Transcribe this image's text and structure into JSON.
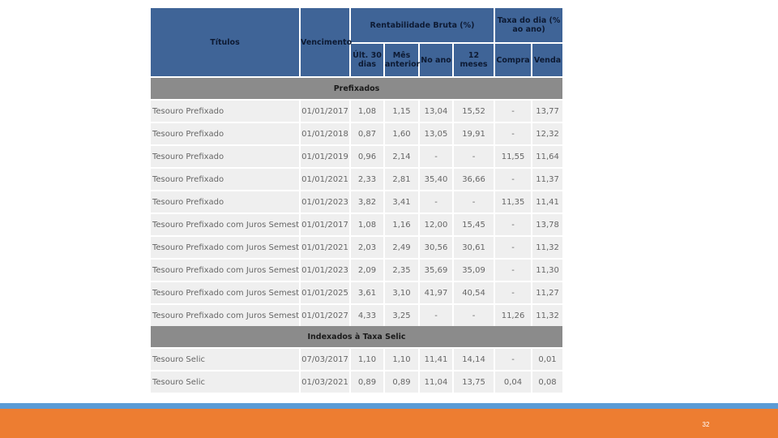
{
  "table": {
    "headers": {
      "titulos": "Títulos",
      "vencimento": "Vencimento",
      "rentabilidade": "Rentabilidade Bruta (%)",
      "taxa": "Taxa do dia (% ao ano)",
      "ult30": "Últ. 30 dias",
      "mes_anterior": "Mês anterior",
      "no_ano": "No ano",
      "meses12": "12 meses",
      "compra": "Compra",
      "venda": "Venda"
    },
    "sections": [
      {
        "title": "Prefixados",
        "rows": [
          [
            "Tesouro Prefixado",
            "01/01/2017",
            "1,08",
            "1,15",
            "13,04",
            "15,52",
            "-",
            "13,77"
          ],
          [
            "Tesouro Prefixado",
            "01/01/2018",
            "0,87",
            "1,60",
            "13,05",
            "19,91",
            "-",
            "12,32"
          ],
          [
            "Tesouro Prefixado",
            "01/01/2019",
            "0,96",
            "2,14",
            "-",
            "-",
            "11,55",
            "11,64"
          ],
          [
            "Tesouro Prefixado",
            "01/01/2021",
            "2,33",
            "2,81",
            "35,40",
            "36,66",
            "-",
            "11,37"
          ],
          [
            "Tesouro Prefixado",
            "01/01/2023",
            "3,82",
            "3,41",
            "-",
            "-",
            "11,35",
            "11,41"
          ],
          [
            "Tesouro Prefixado com Juros Semestrais",
            "01/01/2017",
            "1,08",
            "1,16",
            "12,00",
            "15,45",
            "-",
            "13,78"
          ],
          [
            "Tesouro Prefixado com Juros Semestrais",
            "01/01/2021",
            "2,03",
            "2,49",
            "30,56",
            "30,61",
            "-",
            "11,32"
          ],
          [
            "Tesouro Prefixado com Juros Semestrais",
            "01/01/2023",
            "2,09",
            "2,35",
            "35,69",
            "35,09",
            "-",
            "11,30"
          ],
          [
            "Tesouro Prefixado com Juros Semestrais",
            "01/01/2025",
            "3,61",
            "3,10",
            "41,97",
            "40,54",
            "-",
            "11,27"
          ],
          [
            "Tesouro Prefixado com Juros Semestrais",
            "01/01/2027",
            "4,33",
            "3,25",
            "-",
            "-",
            "11,26",
            "11,32"
          ]
        ]
      },
      {
        "title": "Indexados à Taxa Selic",
        "rows": [
          [
            "Tesouro Selic",
            "07/03/2017",
            "1,10",
            "1,10",
            "11,41",
            "14,14",
            "-",
            "0,01"
          ],
          [
            "Tesouro Selic",
            "01/03/2021",
            "0,89",
            "0,89",
            "11,04",
            "13,75",
            "0,04",
            "0,08"
          ]
        ]
      }
    ]
  },
  "footer": {
    "page_number": "32",
    "colors": {
      "blue_bar": "#5b9bd5",
      "orange_bar": "#ed7d31",
      "header_blue": "#3f6497"
    }
  }
}
